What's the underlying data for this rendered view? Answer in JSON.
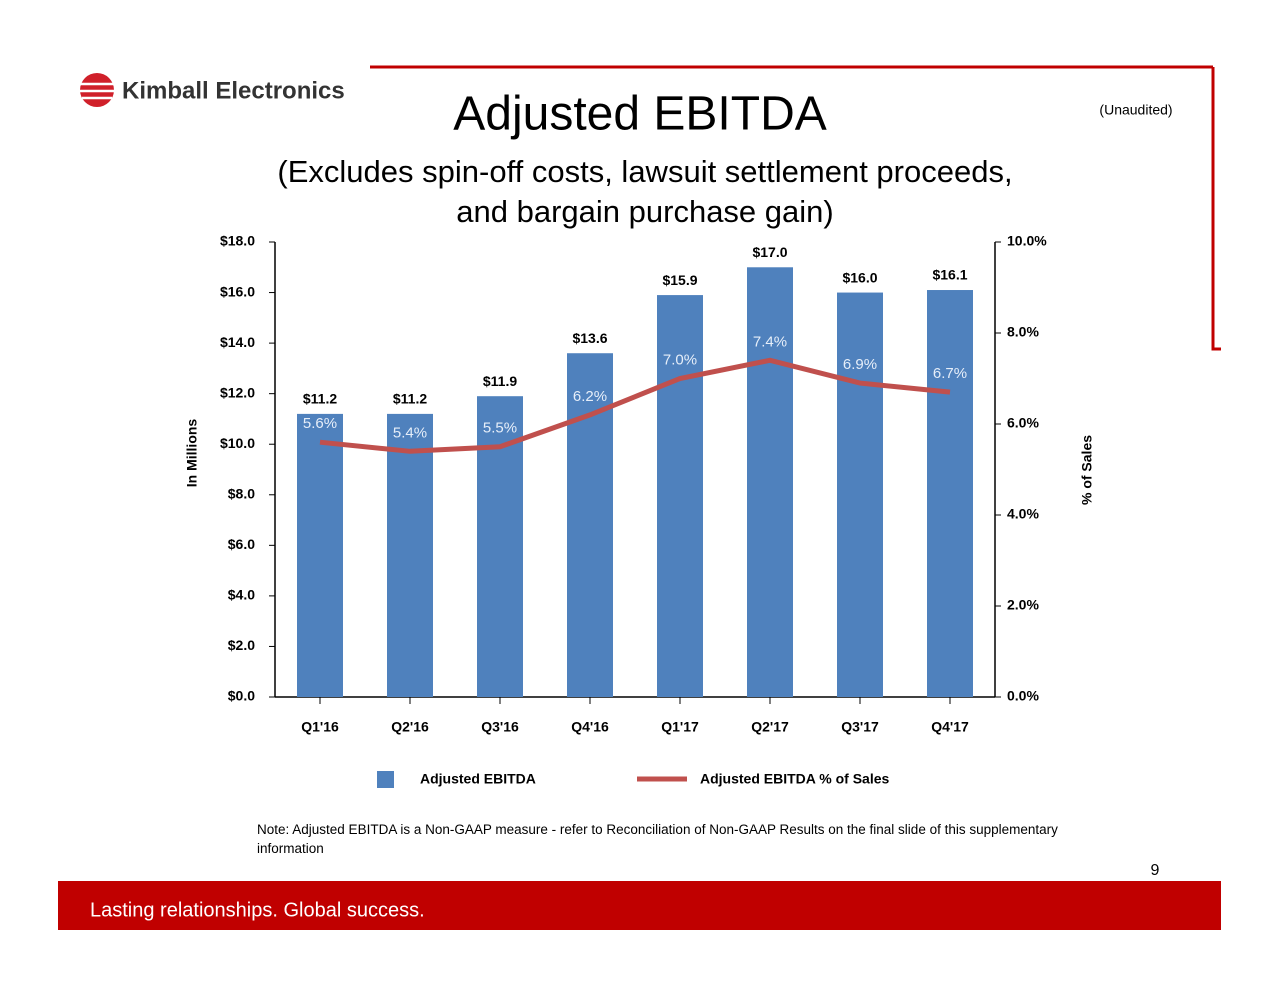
{
  "header": {
    "logo": "Kimball Electronics",
    "status": "(Unaudited)"
  },
  "chart_data": {
    "type": "bar",
    "title": "Adjusted EBITDA",
    "subtitle": "(Excludes spin-off costs, lawsuit settlement proceeds, and bargain purchase gain)",
    "categories": [
      "Q1'16",
      "Q2'16",
      "Q3'16",
      "Q4'16",
      "Q1'17",
      "Q2'17",
      "Q3'17",
      "Q4'17"
    ],
    "series": [
      {
        "name": "Adjusted EBITDA",
        "type": "bar",
        "color": "#4f81bd",
        "values": [
          11.2,
          11.2,
          11.9,
          13.6,
          15.9,
          17.0,
          16.0,
          16.1
        ],
        "value_labels": [
          "$11.2",
          "$11.2",
          "$11.9",
          "$13.6",
          "$15.9",
          "$17.0",
          "$16.0",
          "$16.1"
        ]
      },
      {
        "name": "Adjusted EBITDA % of Sales",
        "type": "line",
        "axis": "y2",
        "color": "#c0504d",
        "values": [
          5.6,
          5.4,
          5.5,
          6.2,
          7.0,
          7.4,
          6.9,
          6.7
        ],
        "value_labels": [
          "5.6%",
          "5.4%",
          "5.5%",
          "6.2%",
          "7.0%",
          "7.4%",
          "6.9%",
          "6.7%"
        ]
      }
    ],
    "ylabel": "In Millions",
    "y2label": "% of Sales",
    "ylim": [
      0,
      18
    ],
    "yticks": [
      {
        "value": 0,
        "label": "$0.0"
      },
      {
        "value": 2,
        "label": "$2.0"
      },
      {
        "value": 4,
        "label": "$4.0"
      },
      {
        "value": 6,
        "label": "$6.0"
      },
      {
        "value": 8,
        "label": "$8.0"
      },
      {
        "value": 10,
        "label": "$10.0"
      },
      {
        "value": 12,
        "label": "$12.0"
      },
      {
        "value": 14,
        "label": "$14.0"
      },
      {
        "value": 16,
        "label": "$16.0"
      },
      {
        "value": 18,
        "label": "$18.0"
      }
    ],
    "y2lim": [
      0,
      10
    ],
    "y2ticks": [
      {
        "value": 0,
        "label": "0.0%"
      },
      {
        "value": 2,
        "label": "2.0%"
      },
      {
        "value": 4,
        "label": "4.0%"
      },
      {
        "value": 6,
        "label": "6.0%"
      },
      {
        "value": 8,
        "label": "8.0%"
      },
      {
        "value": 10,
        "label": "10.0%"
      }
    ],
    "legend": "bottom",
    "grid": false
  },
  "footer": {
    "note": "Note:  Adjusted EBITDA is a Non-GAAP measure - refer to Reconciliation of Non-GAAP Results on the final slide of this supplementary information",
    "page": "9",
    "tagline": "Lasting relationships. Global success."
  }
}
